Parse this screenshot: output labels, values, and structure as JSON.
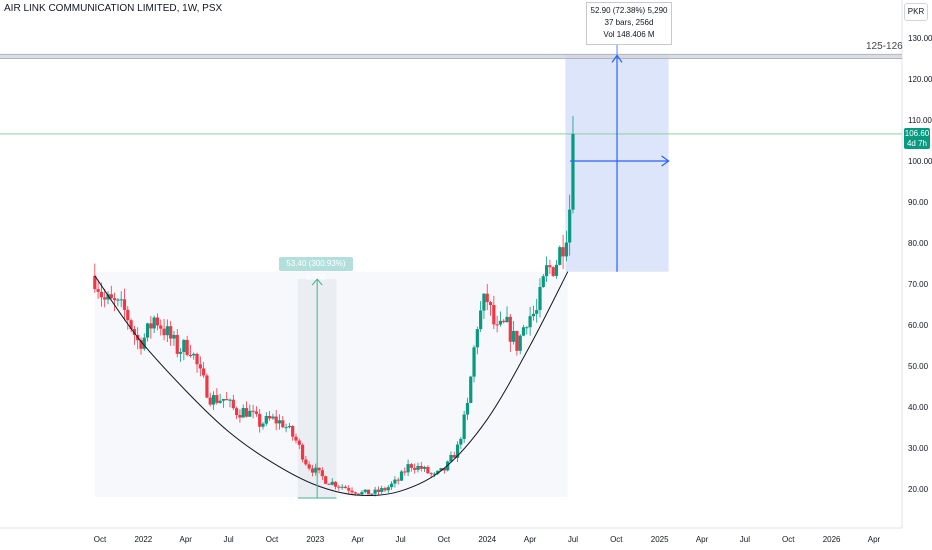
{
  "header": {
    "symbol_label": "AIR LINK COMMUNICATION LIMITED, 1W, PSX",
    "currency_button": "PKR"
  },
  "measure_tooltip": {
    "line1": "52.90 (72.38%) 5,290",
    "line2": "37 bars, 256d",
    "line3": "Vol 148.406 M"
  },
  "measure_chip": {
    "text": "53.40 (300.93%) 5,340"
  },
  "target_zone": {
    "label": "125-126",
    "low": 125,
    "high": 126
  },
  "last_price": {
    "price_text": "106.60",
    "countdown_text": "4d 7h",
    "value": 106.6
  },
  "colors": {
    "up": "#089981",
    "down": "#f23645",
    "projection_fill": "#dbe4fb",
    "projection_line": "#2962ff",
    "measure_line": "#3db58a",
    "curve": "#131722"
  },
  "chart_data": {
    "type": "candlestick",
    "ylim": [
      12,
      132
    ],
    "y_ticks": [
      "130.00",
      "120.00",
      "110.00",
      "100.00",
      "90.00",
      "80.00",
      "70.00",
      "60.00",
      "50.00",
      "40.00",
      "30.00",
      "20.00"
    ],
    "y_tick_values": [
      130,
      120,
      110,
      100,
      90,
      80,
      70,
      60,
      50,
      40,
      30,
      20
    ],
    "x_tick_labels": [
      "Oct",
      "2022",
      "Apr",
      "Jul",
      "Oct",
      "2023",
      "Apr",
      "Jul",
      "Oct",
      "2024",
      "Apr",
      "Jul",
      "Oct",
      "2025",
      "Apr",
      "Jul",
      "Oct",
      "2026",
      "Apr"
    ],
    "x_tick_dates": [
      "2021-10-01",
      "2022-01-01",
      "2022-04-01",
      "2022-07-01",
      "2022-10-01",
      "2023-01-01",
      "2023-04-01",
      "2023-07-01",
      "2023-10-01",
      "2024-01-01",
      "2024-04-01",
      "2024-07-01",
      "2024-10-01",
      "2025-01-01",
      "2025-04-01",
      "2025-07-01",
      "2025-10-01",
      "2026-01-01",
      "2026-04-01"
    ],
    "series": [
      {
        "type": "candles",
        "points": [
          {
            "x": "2021-09-20",
            "y": 72
          },
          {
            "x": "2021-10-10",
            "y": 66
          },
          {
            "x": "2021-11-01",
            "y": 65
          },
          {
            "x": "2021-11-25",
            "y": 63
          },
          {
            "x": "2021-12-20",
            "y": 56
          },
          {
            "x": "2022-01-05",
            "y": 57
          },
          {
            "x": "2022-01-25",
            "y": 62
          },
          {
            "x": "2022-02-20",
            "y": 58
          },
          {
            "x": "2022-03-15",
            "y": 54
          },
          {
            "x": "2022-04-10",
            "y": 55
          },
          {
            "x": "2022-05-01",
            "y": 48
          },
          {
            "x": "2022-05-25",
            "y": 42
          },
          {
            "x": "2022-06-20",
            "y": 42
          },
          {
            "x": "2022-07-15",
            "y": 39
          },
          {
            "x": "2022-08-10",
            "y": 39
          },
          {
            "x": "2022-09-05",
            "y": 36
          },
          {
            "x": "2022-10-01",
            "y": 37
          },
          {
            "x": "2022-10-25",
            "y": 36
          },
          {
            "x": "2022-11-20",
            "y": 32
          },
          {
            "x": "2022-12-15",
            "y": 26
          },
          {
            "x": "2023-01-05",
            "y": 24
          },
          {
            "x": "2023-01-25",
            "y": 22
          },
          {
            "x": "2023-02-20",
            "y": 21
          },
          {
            "x": "2023-03-15",
            "y": 20
          },
          {
            "x": "2023-04-10",
            "y": 19
          },
          {
            "x": "2023-05-05",
            "y": 19
          },
          {
            "x": "2023-05-30",
            "y": 20
          },
          {
            "x": "2023-06-25",
            "y": 22
          },
          {
            "x": "2023-07-20",
            "y": 26
          },
          {
            "x": "2023-08-15",
            "y": 25
          },
          {
            "x": "2023-09-10",
            "y": 23
          },
          {
            "x": "2023-10-05",
            "y": 25
          },
          {
            "x": "2023-10-30",
            "y": 30
          },
          {
            "x": "2023-11-20",
            "y": 40
          },
          {
            "x": "2023-12-10",
            "y": 60
          },
          {
            "x": "2023-12-30",
            "y": 67
          },
          {
            "x": "2024-01-20",
            "y": 58
          },
          {
            "x": "2024-02-10",
            "y": 60
          },
          {
            "x": "2024-03-05",
            "y": 55
          },
          {
            "x": "2024-03-25",
            "y": 62
          },
          {
            "x": "2024-04-15",
            "y": 63
          },
          {
            "x": "2024-05-05",
            "y": 73
          },
          {
            "x": "2024-05-25",
            "y": 75
          },
          {
            "x": "2024-06-15",
            "y": 82
          },
          {
            "x": "2024-06-28",
            "y": 92
          },
          {
            "x": "2024-07-06",
            "y": 106.6
          }
        ]
      },
      {
        "type": "cup-curve",
        "points": [
          {
            "x": "2021-09-20",
            "y": 72
          },
          {
            "x": "2021-12-20",
            "y": 57
          },
          {
            "x": "2022-04-01",
            "y": 44
          },
          {
            "x": "2022-07-01",
            "y": 34
          },
          {
            "x": "2022-10-01",
            "y": 26.5
          },
          {
            "x": "2023-01-01",
            "y": 21
          },
          {
            "x": "2023-04-01",
            "y": 18.5
          },
          {
            "x": "2023-07-01",
            "y": 19.5
          },
          {
            "x": "2023-10-01",
            "y": 25
          },
          {
            "x": "2024-01-01",
            "y": 37
          },
          {
            "x": "2024-04-01",
            "y": 55
          },
          {
            "x": "2024-06-20",
            "y": 73
          }
        ]
      }
    ],
    "annotations": [
      {
        "type": "price-range",
        "x_start": "2022-11-25",
        "x_end": "2023-02-15",
        "y_low": 17.8,
        "y_high": 71.2
      },
      {
        "type": "resistance-line",
        "x_start": "2021-09-20",
        "x_end": "2024-06-20",
        "y": 73
      },
      {
        "type": "projection-box",
        "x_start": "2024-06-15",
        "x_end": "2025-01-20",
        "y_low": 73,
        "y_high": 126
      },
      {
        "type": "horizontal-line",
        "y": 106.6
      }
    ]
  }
}
